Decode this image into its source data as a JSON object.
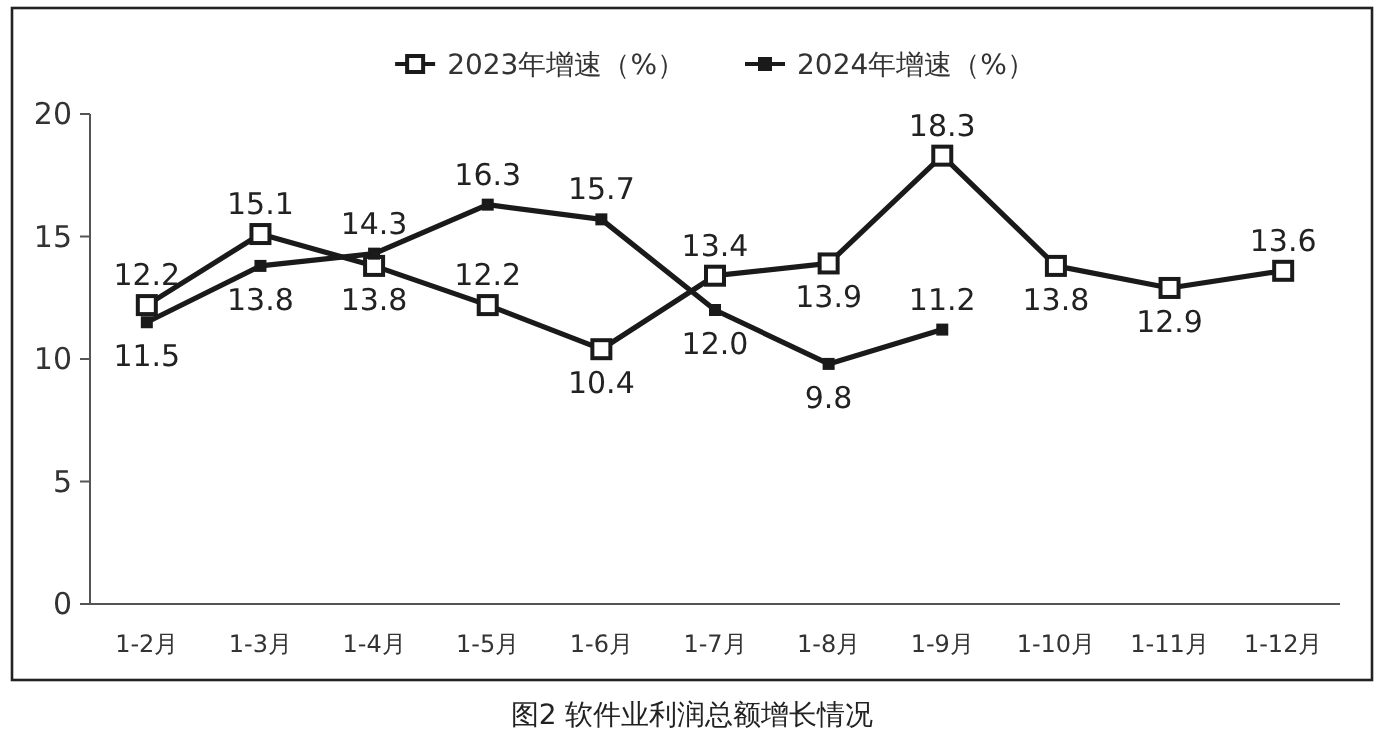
{
  "chart_data": {
    "type": "line",
    "title": "图2  软件业利润总额增长情况",
    "categories": [
      "1-2月",
      "1-3月",
      "1-4月",
      "1-5月",
      "1-6月",
      "1-7月",
      "1-8月",
      "1-9月",
      "1-10月",
      "1-11月",
      "1-12月"
    ],
    "series": [
      {
        "name": "2023年增速（%）",
        "color": "#1a1a1a",
        "values": [
          12.2,
          15.1,
          13.8,
          12.2,
          10.4,
          13.4,
          13.9,
          18.3,
          13.8,
          12.9,
          13.6
        ],
        "value_labels": [
          "12.2",
          "15.1",
          "13.8",
          "12.2",
          "10.4",
          "13.4",
          "13.9",
          "18.3",
          "13.8",
          "12.9",
          "13.6"
        ]
      },
      {
        "name": "2024年增速（%）",
        "color": "#1a1a1a",
        "values": [
          11.5,
          13.8,
          14.3,
          16.3,
          15.7,
          12.0,
          9.8,
          11.2,
          null,
          null,
          null
        ],
        "value_labels": [
          "11.5",
          "13.8",
          "14.3",
          "16.3",
          "15.7",
          "12.0",
          "9.8",
          "11.2",
          null,
          null,
          null
        ]
      }
    ],
    "ylim": [
      0,
      20
    ],
    "yticks": [
      0,
      5,
      10,
      15,
      20
    ],
    "legend": "top",
    "grid": false,
    "marker": "square",
    "line_style": "solid"
  }
}
